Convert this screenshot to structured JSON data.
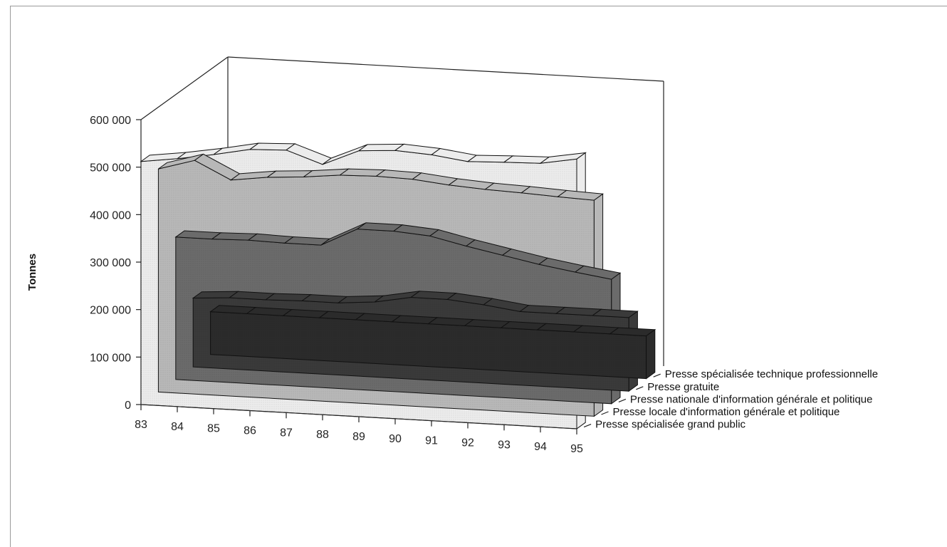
{
  "chart_data": {
    "type": "area",
    "title": "",
    "xlabel": "",
    "ylabel": "Tonnes",
    "x": [
      "83",
      "84",
      "85",
      "86",
      "87",
      "88",
      "89",
      "90",
      "91",
      "92",
      "93",
      "94",
      "95"
    ],
    "y_ticks": [
      "0",
      "100 000",
      "200 000",
      "300 000",
      "400 000",
      "500 000",
      "600 000"
    ],
    "ylim": [
      0,
      600000
    ],
    "grid": false,
    "legend": "right",
    "series": [
      {
        "name": "Presse spécialisée technique professionnelle",
        "color": "#2b2b2b",
        "values": [
          90000,
          90000,
          90000,
          90000,
          90000,
          90000,
          90000,
          90000,
          90000,
          90000,
          90000,
          90000,
          90000
        ]
      },
      {
        "name": "Presse gratuite",
        "color": "#3a3a3a",
        "values": [
          145000,
          150000,
          150000,
          152000,
          152000,
          158000,
          172000,
          172000,
          165000,
          155000,
          155000,
          155000,
          155000
        ]
      },
      {
        "name": "Presse nationale d'information générale et politique",
        "color": "#6b6b6b",
        "values": [
          300000,
          300000,
          302000,
          300000,
          300000,
          338000,
          338000,
          332000,
          315000,
          300000,
          285000,
          273000,
          262000
        ]
      },
      {
        "name": "Presse locale d'information générale et politique",
        "color": "#b8b8b8",
        "values": [
          470000,
          492000,
          455000,
          465000,
          470000,
          478000,
          480000,
          478000,
          470000,
          465000,
          462000,
          458000,
          455000
        ]
      },
      {
        "name": "Presse spécialisée grand public",
        "color": "#ececec",
        "values": [
          512000,
          522000,
          535000,
          550000,
          553000,
          527000,
          560000,
          565000,
          560000,
          550000,
          553000,
          555000,
          568000
        ]
      }
    ]
  }
}
